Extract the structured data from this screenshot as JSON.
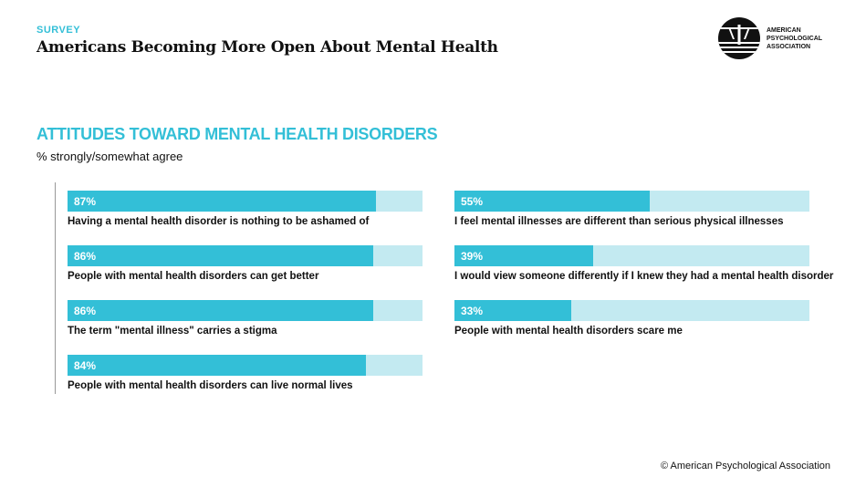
{
  "header": {
    "kicker": "SURVEY",
    "title": "Americans Becoming More Open About Mental Health"
  },
  "logo": {
    "text": [
      "AMERICAN",
      "PSYCHOLOGICAL",
      "ASSOCIATION"
    ]
  },
  "colors": {
    "accent": "#33bfd7",
    "track": "#c3eaf1"
  },
  "chart_data": {
    "type": "bar",
    "title": "ATTITUDES TOWARD MENTAL HEALTH DISORDERS",
    "subtitle": "% strongly/somewhat agree",
    "ylim": [
      0,
      100
    ],
    "categories": [
      "Having a mental health disorder is nothing to be ashamed of",
      "People with mental health disorders can get better",
      "The term \"mental illness\" carries a stigma",
      "People with mental health disorders can live normal lives",
      "I feel mental illnesses are different than serious physical illnesses",
      "I would view someone differently if I knew they had a mental health disorder",
      "People with mental health disorders scare me"
    ],
    "values": [
      87,
      86,
      86,
      84,
      55,
      39,
      33
    ],
    "labels": [
      "87%",
      "86%",
      "86%",
      "84%",
      "55%",
      "39%",
      "33%"
    ]
  },
  "footer": {
    "copyright": "© American Psychological Association"
  }
}
